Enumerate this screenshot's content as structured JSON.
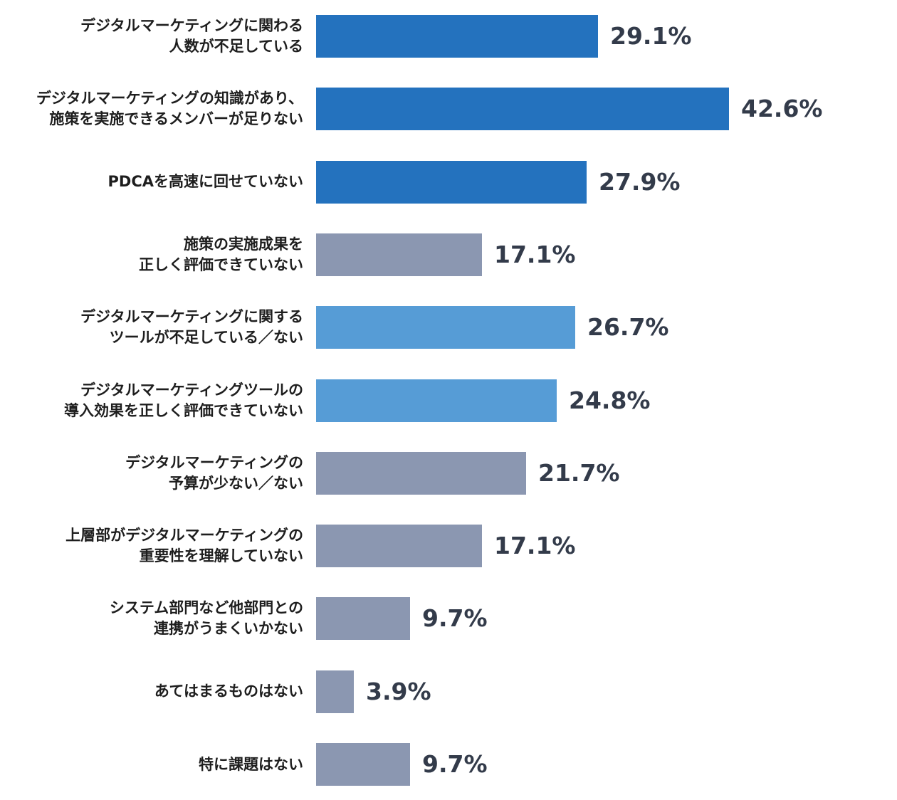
{
  "colors": {
    "dark_blue": "#2472be",
    "light_blue": "#569cd6",
    "gray": "#8b97b1",
    "value_text": "#333b4a",
    "label_text": "#1e1e1e"
  },
  "chart_data": {
    "type": "bar",
    "orientation": "horizontal",
    "title": "",
    "xlabel": "",
    "ylabel": "",
    "xlim": [
      0,
      42.6
    ],
    "grid": false,
    "legend": "none",
    "unit": "%",
    "categories": [
      {
        "lines": [
          "デジタルマーケティングに関わる",
          "人数が不足している"
        ],
        "value": 29.1,
        "value_label": "29.1%",
        "color": "dark_blue"
      },
      {
        "lines": [
          "デジタルマーケティングの知識があり、",
          "施策を実施できるメンバーが足りない"
        ],
        "value": 42.6,
        "value_label": "42.6%",
        "color": "dark_blue"
      },
      {
        "lines": [
          "PDCAを高速に回せていない"
        ],
        "value": 27.9,
        "value_label": "27.9%",
        "color": "dark_blue"
      },
      {
        "lines": [
          "施策の実施成果を",
          "正しく評価できていない"
        ],
        "value": 17.1,
        "value_label": "17.1%",
        "color": "gray"
      },
      {
        "lines": [
          "デジタルマーケティングに関する",
          "ツールが不足している／ない"
        ],
        "value": 26.7,
        "value_label": "26.7%",
        "color": "light_blue"
      },
      {
        "lines": [
          "デジタルマーケティングツールの",
          "導入効果を正しく評価できていない"
        ],
        "value": 24.8,
        "value_label": "24.8%",
        "color": "light_blue"
      },
      {
        "lines": [
          "デジタルマーケティングの",
          "予算が少ない／ない"
        ],
        "value": 21.7,
        "value_label": "21.7%",
        "color": "gray"
      },
      {
        "lines": [
          "上層部がデジタルマーケティングの",
          "重要性を理解していない"
        ],
        "value": 17.1,
        "value_label": "17.1%",
        "color": "gray"
      },
      {
        "lines": [
          "システム部門など他部門との",
          "連携がうまくいかない"
        ],
        "value": 9.7,
        "value_label": "9.7%",
        "color": "gray"
      },
      {
        "lines": [
          "あてはまるものはない"
        ],
        "value": 3.9,
        "value_label": "3.9%",
        "color": "gray"
      },
      {
        "lines": [
          "特に課題はない"
        ],
        "value": 9.7,
        "value_label": "9.7%",
        "color": "gray"
      }
    ]
  }
}
